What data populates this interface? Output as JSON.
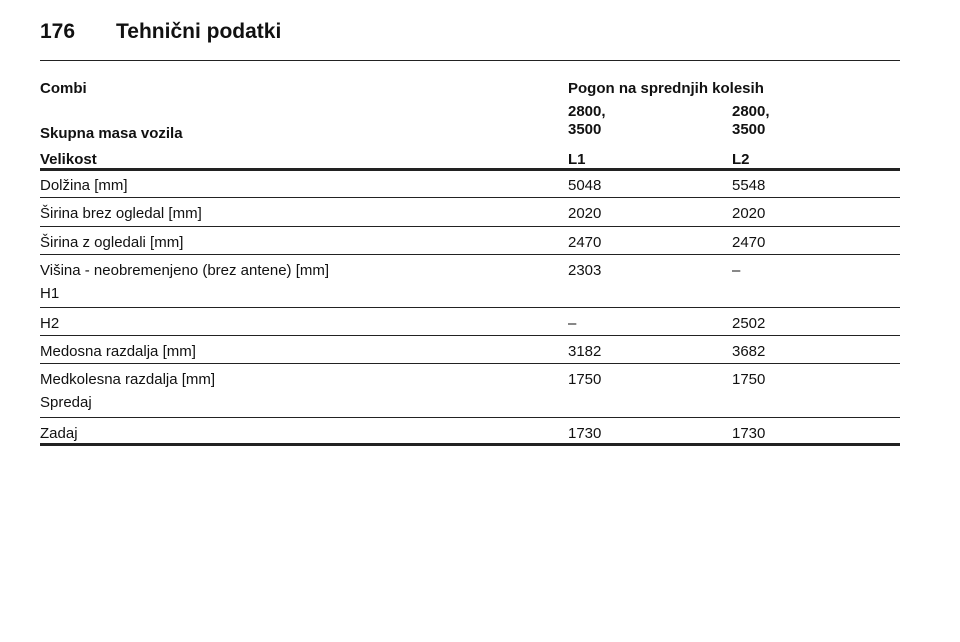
{
  "header": {
    "page_number": "176",
    "title": "Tehnični podatki"
  },
  "table": {
    "head": {
      "vehicle_label": "Combi",
      "drive_label": "Pogon na sprednjih kolesih",
      "mass_label": "Skupna masa vozila",
      "mass_col1": [
        "2800,",
        "3500"
      ],
      "mass_col2": [
        "2800,",
        "3500"
      ],
      "size_label": "Velikost",
      "size_col1": "L1",
      "size_col2": "L2"
    },
    "rows": [
      {
        "label": "Dolžina [mm]",
        "v1": "5048",
        "v2": "5548"
      },
      {
        "label": "Širina brez ogledal [mm]",
        "v1": "2020",
        "v2": "2020"
      },
      {
        "label": "Širina z ogledali [mm]",
        "v1": "2470",
        "v2": "2470"
      },
      {
        "label": "Višina - neobremenjeno (brez antene) [mm]",
        "sub": "H1",
        "v1": "2303",
        "v2": "–"
      },
      {
        "label": "H2",
        "v1": "–",
        "v2": "2502"
      },
      {
        "label": "Medosna razdalja [mm]",
        "v1": "3182",
        "v2": "3682"
      },
      {
        "label": "Medkolesna razdalja [mm]",
        "sub": "Spredaj",
        "v1": "1750",
        "v2": "1750"
      },
      {
        "label": "Zadaj",
        "v1": "1730",
        "v2": "1730"
      }
    ]
  }
}
